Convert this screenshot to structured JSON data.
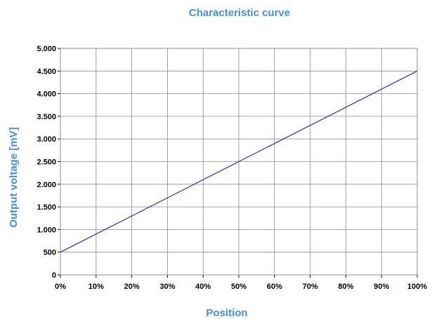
{
  "colors": {
    "title": "#4a90c8",
    "line": "#2e3192",
    "grid": "#8c8c8c",
    "axis": "#000000",
    "background": "#ffffff"
  },
  "chart_data": {
    "type": "line",
    "title": "Characteristic curve",
    "xlabel": "Position",
    "ylabel": "Output voltage [mV]",
    "xlim": [
      0,
      100
    ],
    "ylim": [
      0,
      5000
    ],
    "grid": true,
    "x_ticks": [
      0,
      10,
      20,
      30,
      40,
      50,
      60,
      70,
      80,
      90,
      100
    ],
    "x_tick_labels": [
      "0%",
      "10%",
      "20%",
      "30%",
      "40%",
      "50%",
      "60%",
      "70%",
      "80%",
      "90%",
      "100%"
    ],
    "y_ticks": [
      0,
      500,
      1000,
      1500,
      2000,
      2500,
      3000,
      3500,
      4000,
      4500,
      5000
    ],
    "y_tick_labels": [
      "0",
      "500",
      "1.000",
      "1.500",
      "2.000",
      "2.500",
      "3.000",
      "3.500",
      "4.000",
      "4.500",
      "5.000"
    ],
    "series": [
      {
        "x": [
          0,
          100
        ],
        "y": [
          500,
          4500
        ]
      }
    ]
  }
}
